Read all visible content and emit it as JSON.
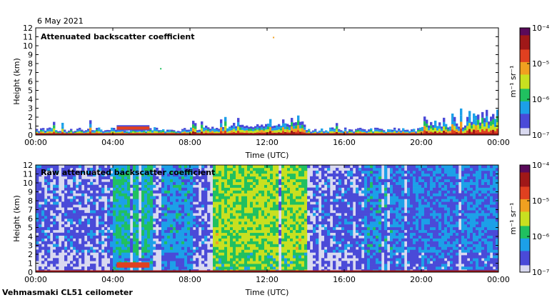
{
  "date": "6 May 2021",
  "site": "Vehmasmaki CL51 ceilometer",
  "colors": {
    "colormap": [
      "#d9d9f0",
      "#4a4ad8",
      "#1ca0e8",
      "#20c060",
      "#c8e020",
      "#f0a020",
      "#e04020",
      "#a01818",
      "#5a0a5a"
    ]
  },
  "chart_data": [
    {
      "type": "heatmap",
      "title": "Attenuated backscatter coefficient",
      "xlabel": "Time (UTC)",
      "ylabel": "Height (km)",
      "xticks": [
        "00:00",
        "04:00",
        "08:00",
        "12:00",
        "16:00",
        "20:00",
        "00:00"
      ],
      "yticks": [
        "0",
        "1",
        "2",
        "3",
        "4",
        "5",
        "6",
        "7",
        "8",
        "9",
        "10",
        "11",
        "12"
      ],
      "xlim_hours": [
        0,
        24
      ],
      "ylim_km": [
        0,
        12
      ],
      "colorbar": {
        "label": "m⁻¹ sr⁻¹",
        "ticks": [
          "10⁻⁷",
          "10⁻⁶",
          "10⁻⁵",
          "10⁻⁴"
        ],
        "range_log10": [
          -7,
          -4
        ]
      },
      "features": {
        "surface_layer_top_km": 0.3,
        "cloud_layer_hours": [
          4.2,
          5.9
        ],
        "cloud_layer_km": [
          0.5,
          1.1
        ],
        "boundary_layer_top_km": [
          0.3,
          1.2,
          2.8
        ]
      }
    },
    {
      "type": "heatmap",
      "title": "Raw attenuated backscatter coefficient",
      "xlabel": "Time (UTC)",
      "ylabel": "Height (km)",
      "xticks": [
        "00:00",
        "04:00",
        "08:00",
        "12:00",
        "16:00",
        "20:00",
        "00:00"
      ],
      "yticks": [
        "0",
        "1",
        "2",
        "3",
        "4",
        "5",
        "6",
        "7",
        "8",
        "9",
        "10",
        "11",
        "12"
      ],
      "xlim_hours": [
        0,
        24
      ],
      "ylim_km": [
        0,
        12
      ],
      "colorbar": {
        "label": "m⁻¹ sr⁻¹",
        "ticks": [
          "10⁻⁷",
          "10⁻⁶",
          "10⁻⁵",
          "10⁻⁴"
        ],
        "range_log10": [
          -7,
          -4
        ]
      },
      "features": {
        "high_noise_period_hours": [
          9.2,
          14.2
        ],
        "moderate_noise_period_hours": [
          4.0,
          6.0
        ],
        "cloud_layer_hours": [
          4.2,
          5.9
        ],
        "cloud_layer_km": [
          0.5,
          1.1
        ]
      }
    }
  ]
}
